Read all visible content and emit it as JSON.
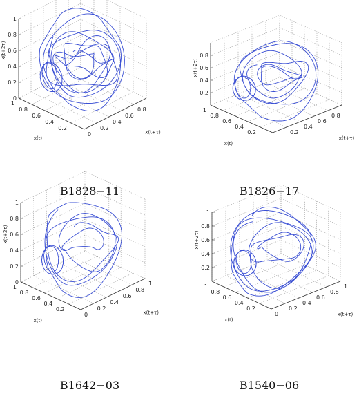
{
  "figure": {
    "line_color": "#3a4fd4"
  },
  "chart_data": [
    {
      "type": "line",
      "projection": "3d",
      "caption": "B1828−11",
      "xlabel": "x(t)",
      "ylabel": "x(t+τ)",
      "zlabel": "x(t+2τ)",
      "xlim": [
        0,
        1
      ],
      "ylim": [
        0,
        1
      ],
      "zlim": [
        0,
        1
      ],
      "x_ticks": [
        "0.2",
        "0.4",
        "0.6",
        "0.8",
        "1"
      ],
      "y_ticks": [
        "0",
        "0.2",
        "0.4",
        "0.6",
        "0.8"
      ],
      "z_ticks": [
        "0",
        "0.2",
        "0.4",
        "0.6",
        "0.8",
        "1"
      ],
      "grid": true
    },
    {
      "type": "line",
      "projection": "3d",
      "caption": "B1826−17",
      "xlabel": "x(t)",
      "ylabel": "x(t+τ)",
      "zlabel": "x(t+2τ)",
      "xlim": [
        0,
        1
      ],
      "ylim": [
        0,
        1
      ],
      "zlim": [
        0,
        1
      ],
      "x_ticks": [
        "0.2",
        "0.4",
        "0.6",
        "0.8",
        "1"
      ],
      "y_ticks": [
        "0.2",
        "0.4",
        "0.6",
        "0.8"
      ],
      "z_ticks": [
        "0.2",
        "0.4",
        "0.6",
        "0.8"
      ],
      "grid": true
    },
    {
      "type": "line",
      "projection": "3d",
      "caption": "B1642−03",
      "xlabel": "x(t)",
      "ylabel": "x(t+τ)",
      "zlabel": "x(t+2τ)",
      "xlim": [
        0,
        1
      ],
      "ylim": [
        0,
        1
      ],
      "zlim": [
        0,
        1
      ],
      "x_ticks": [
        "0.2",
        "0.4",
        "0.6",
        "0.8",
        "1"
      ],
      "y_ticks": [
        "0",
        "0.2",
        "0.4",
        "0.6",
        "0.8",
        "1"
      ],
      "z_ticks": [
        "0",
        "0.2",
        "0.4",
        "0.6",
        "0.8",
        "1"
      ],
      "grid": true
    },
    {
      "type": "line",
      "projection": "3d",
      "caption": "B1540−06",
      "xlabel": "x(t)",
      "ylabel": "x(t+τ)",
      "zlabel": "x(t+2τ)",
      "xlim": [
        0,
        1
      ],
      "ylim": [
        0,
        1
      ],
      "zlim": [
        0,
        1
      ],
      "x_ticks": [
        "0.2",
        "0.4",
        "0.6",
        "0.8",
        "1"
      ],
      "y_ticks": [
        "0",
        "0.2",
        "0.4",
        "0.6",
        "0.8",
        "1"
      ],
      "z_ticks": [
        "0.2",
        "0.4",
        "0.6",
        "0.8",
        "1"
      ],
      "grid": true
    }
  ]
}
